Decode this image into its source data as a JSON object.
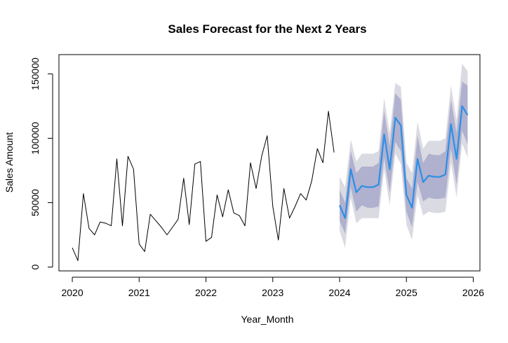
{
  "chart_data": {
    "type": "line",
    "title": "Sales Forecast for the Next 2 Years",
    "xlabel": "Year_Month",
    "ylabel": "Sales Amount",
    "xlim": [
      2019.8,
      2026.1
    ],
    "ylim": [
      -3000,
      165000
    ],
    "x_ticks": [
      2020,
      2021,
      2022,
      2023,
      2024,
      2025,
      2026
    ],
    "y_ticks": [
      0,
      50000,
      100000,
      150000
    ],
    "grid": false,
    "legend": "none",
    "colors": {
      "history": "#000000",
      "forecast": "#2b8fe6",
      "band_95": "#dadae2",
      "band_80": "#b0b0cf"
    },
    "history": {
      "start": [
        2020,
        1
      ],
      "frequency": 12,
      "values": [
        15000,
        5000,
        57000,
        30000,
        25000,
        35000,
        34000,
        32000,
        84000,
        32000,
        86000,
        76000,
        18000,
        12000,
        41000,
        36000,
        31000,
        25000,
        31000,
        37000,
        69000,
        33000,
        80000,
        82000,
        20000,
        23000,
        56000,
        39000,
        60000,
        42000,
        40000,
        32000,
        81000,
        61000,
        86000,
        102000,
        47000,
        21000,
        61000,
        38000,
        47000,
        57000,
        52000,
        67000,
        92000,
        81000,
        121000,
        89000
      ]
    },
    "forecast": {
      "start": [
        2024,
        1
      ],
      "frequency": 12,
      "mean": [
        48000,
        38000,
        76000,
        58000,
        63000,
        62000,
        62000,
        64000,
        103000,
        76000,
        116000,
        110000,
        56000,
        46000,
        84000,
        66000,
        71000,
        70000,
        70000,
        72000,
        111000,
        84000,
        125000,
        118000
      ],
      "lo80": [
        36000,
        26000,
        62000,
        43000,
        48000,
        46000,
        46000,
        47000,
        85000,
        58000,
        97000,
        90000,
        43000,
        31000,
        66000,
        51000,
        54000,
        53000,
        53000,
        54000,
        92000,
        64000,
        106000,
        95000
      ],
      "hi80": [
        60000,
        50000,
        90000,
        73000,
        78000,
        78000,
        78000,
        81000,
        121000,
        94000,
        135000,
        130000,
        69000,
        61000,
        102000,
        81000,
        88000,
        87000,
        87000,
        90000,
        130000,
        104000,
        144000,
        141000
      ],
      "lo95": [
        28000,
        15000,
        54000,
        34000,
        38000,
        38000,
        38000,
        38000,
        76000,
        48000,
        88000,
        80000,
        33000,
        21000,
        56000,
        40000,
        43000,
        42000,
        42000,
        43000,
        81000,
        54000,
        96000,
        85000
      ],
      "hi95": [
        70000,
        62000,
        99000,
        82000,
        88000,
        88000,
        88000,
        90000,
        131000,
        104000,
        143000,
        140000,
        81000,
        73000,
        113000,
        92000,
        98000,
        98000,
        98000,
        100000,
        141000,
        114000,
        158000,
        152000
      ]
    }
  }
}
